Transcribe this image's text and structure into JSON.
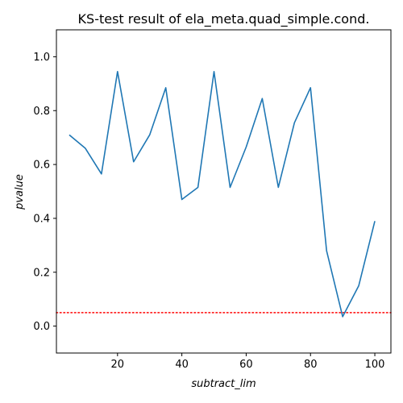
{
  "chart_data": {
    "type": "line",
    "title": "KS-test result of ela_meta.quad_simple.cond.",
    "xlabel": "subtract_lim",
    "ylabel": "pvalue",
    "xlim": [
      1,
      105
    ],
    "ylim": [
      -0.1,
      1.1
    ],
    "x_ticks": [
      20,
      40,
      60,
      80,
      100
    ],
    "y_ticks": [
      0.0,
      0.2,
      0.4,
      0.6,
      0.8,
      1.0
    ],
    "x_tick_labels": [
      "20",
      "40",
      "60",
      "80",
      "100"
    ],
    "y_tick_labels": [
      "0.0",
      "0.2",
      "0.4",
      "0.6",
      "0.8",
      "1.0"
    ],
    "grid": false,
    "series": [
      {
        "color": "#1f77b4",
        "x": [
          5,
          10,
          15,
          20,
          25,
          30,
          35,
          40,
          45,
          50,
          55,
          60,
          65,
          70,
          75,
          80,
          85,
          90,
          95,
          100
        ],
        "y": [
          0.71,
          0.66,
          0.565,
          0.945,
          0.61,
          0.71,
          0.885,
          0.47,
          0.515,
          0.945,
          0.515,
          0.665,
          0.845,
          0.515,
          0.755,
          0.885,
          0.28,
          0.035,
          0.15,
          0.39
        ]
      }
    ],
    "reference_lines": [
      {
        "orientation": "horizontal",
        "value": 0.05,
        "color": "#ff0000",
        "style": "dotted"
      }
    ]
  }
}
